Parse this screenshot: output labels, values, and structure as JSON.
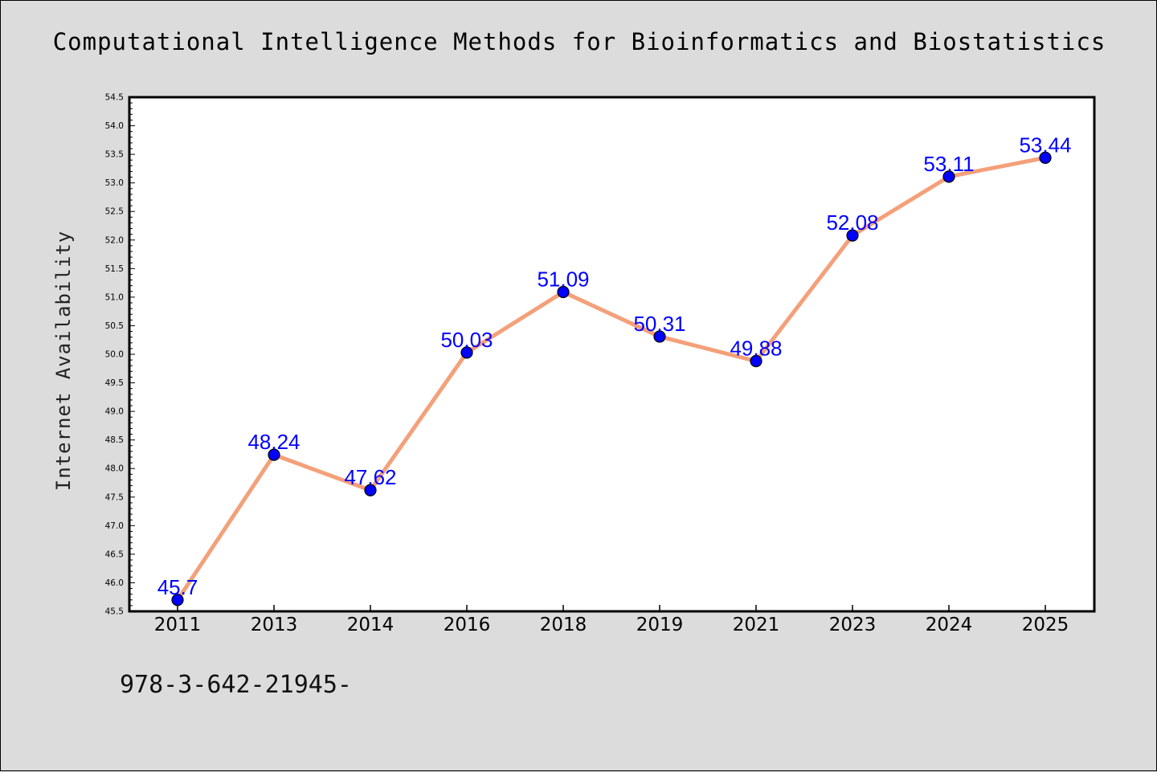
{
  "chart_data": {
    "type": "line",
    "title": "Computational Intelligence Methods for Bioinformatics and Biostatistics",
    "xlabel": "",
    "ylabel": "Internet Availability",
    "categories": [
      "2011",
      "2013",
      "2014",
      "2016",
      "2018",
      "2019",
      "2021",
      "2023",
      "2024",
      "2025"
    ],
    "values": [
      45.7,
      48.24,
      47.62,
      50.03,
      51.09,
      50.31,
      49.88,
      52.08,
      53.11,
      53.44
    ],
    "data_labels": [
      "45.7",
      "48.24",
      "47.62",
      "50.03",
      "51.09",
      "50.31",
      "49.88",
      "52.08",
      "53.11",
      "53.44"
    ],
    "ylim": [
      45.5,
      54.5
    ],
    "yticks": [
      "45.5",
      "46.0",
      "46.5",
      "47.0",
      "47.5",
      "48.0",
      "48.5",
      "49.0",
      "49.5",
      "50.0",
      "50.5",
      "51.0",
      "51.5",
      "52.0",
      "52.5",
      "53.0",
      "53.5",
      "54.0",
      "54.5"
    ],
    "grid": false,
    "colors": {
      "line": "#f4a07a",
      "marker": "#0000ff",
      "data_label": "#0000ff",
      "plot_bg": "#ffffff",
      "figure_bg": "#dcdcdc"
    }
  },
  "footer": {
    "text": "978-3-642-21945-"
  }
}
